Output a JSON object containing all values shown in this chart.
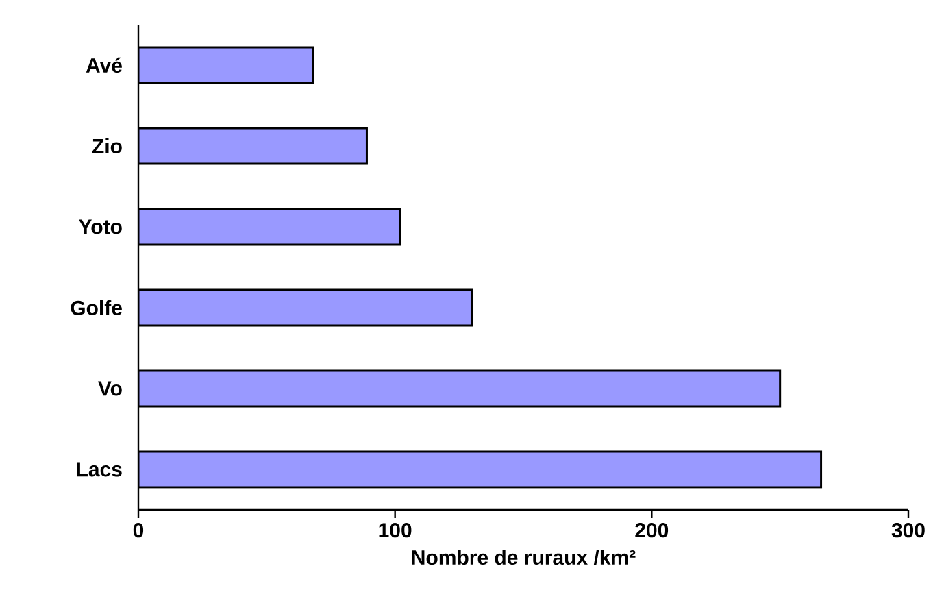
{
  "chart_data": {
    "type": "bar",
    "orientation": "horizontal",
    "xlabel": "Nombre de ruraux /km²",
    "categories": [
      "Avé",
      "Zio",
      "Yoto",
      "Golfe",
      "Vo",
      "Lacs"
    ],
    "values": [
      68,
      89,
      102,
      130,
      250,
      266
    ],
    "color": "#9999ff",
    "xlim": [
      0,
      300
    ],
    "xticks": [
      0,
      100,
      200,
      300
    ],
    "grid": false
  }
}
